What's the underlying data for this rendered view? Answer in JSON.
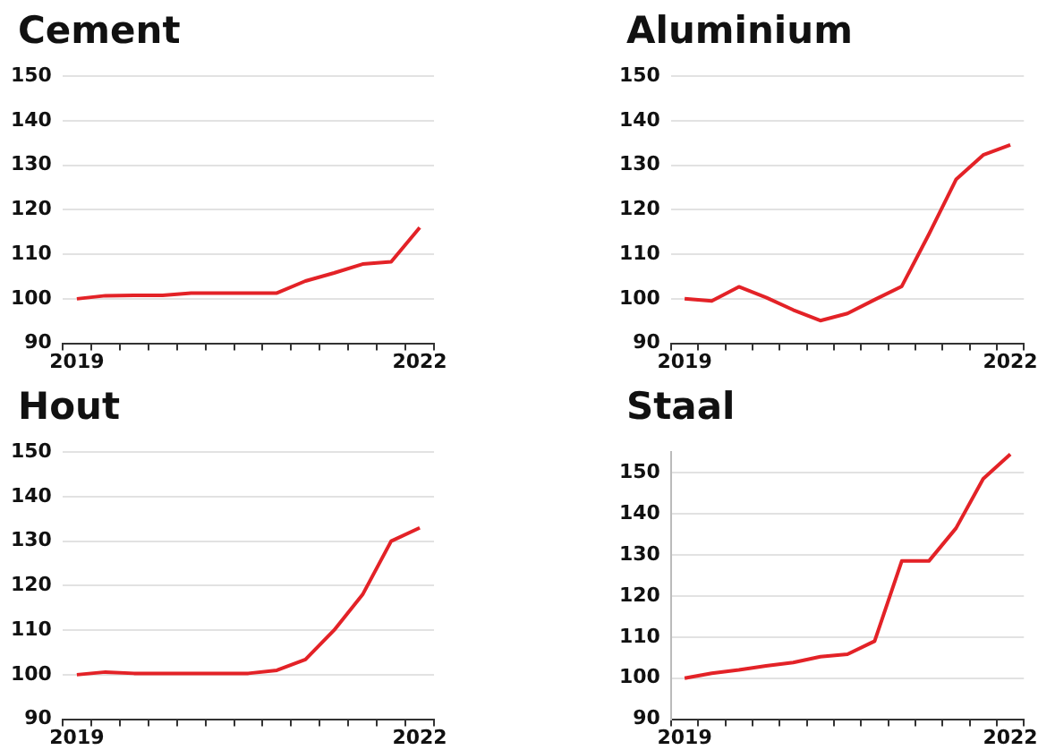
{
  "chart_data": [
    {
      "type": "line",
      "title": "Cement",
      "categories": [
        "2019",
        null,
        null,
        null,
        null,
        null,
        null,
        null,
        null,
        null,
        null,
        null,
        "2022"
      ],
      "series": [
        {
          "color": "#e32227",
          "values": [
            100,
            100.7,
            100.8,
            100.8,
            101.3,
            101.3,
            101.3,
            101.3,
            104,
            105.8,
            107.8,
            108.3,
            116
          ]
        }
      ],
      "ylim": [
        90,
        150
      ],
      "yticks": [
        90,
        100,
        110,
        120,
        130,
        140,
        150
      ],
      "grid": "y",
      "legend": false
    },
    {
      "type": "line",
      "title": "Aluminium",
      "categories": [
        "2019",
        null,
        null,
        null,
        null,
        null,
        null,
        null,
        null,
        null,
        null,
        null,
        "2022"
      ],
      "series": [
        {
          "color": "#e32227",
          "values": [
            100,
            99.5,
            102.7,
            100.3,
            97.5,
            95.1,
            96.7,
            99.8,
            102.8,
            114.5,
            126.8,
            132.3,
            134.6
          ]
        }
      ],
      "ylim": [
        90,
        150
      ],
      "yticks": [
        90,
        100,
        110,
        120,
        130,
        140,
        150
      ],
      "grid": "y",
      "legend": false
    },
    {
      "type": "line",
      "title": "Hout",
      "categories": [
        "2019",
        null,
        null,
        null,
        null,
        null,
        null,
        null,
        null,
        null,
        null,
        null,
        "2022"
      ],
      "series": [
        {
          "color": "#e32227",
          "values": [
            100,
            100.6,
            100.3,
            100.3,
            100.3,
            100.3,
            100.3,
            101,
            103.4,
            110,
            118,
            130,
            133
          ]
        }
      ],
      "ylim": [
        90,
        150
      ],
      "yticks": [
        90,
        100,
        110,
        120,
        130,
        140,
        150
      ],
      "grid": "y",
      "legend": false
    },
    {
      "type": "line",
      "title": "Staal",
      "categories": [
        "2019",
        null,
        null,
        null,
        null,
        null,
        null,
        null,
        null,
        null,
        null,
        null,
        "2022"
      ],
      "series": [
        {
          "color": "#e32227",
          "values": [
            100,
            101.2,
            102,
            103,
            103.8,
            105.2,
            105.8,
            109,
            128.5,
            128.5,
            136.5,
            148.5,
            154.5
          ]
        }
      ],
      "ylim": [
        90,
        155
      ],
      "yticks": [
        90,
        100,
        110,
        120,
        130,
        140,
        150
      ],
      "grid": "y",
      "legend": false
    }
  ]
}
